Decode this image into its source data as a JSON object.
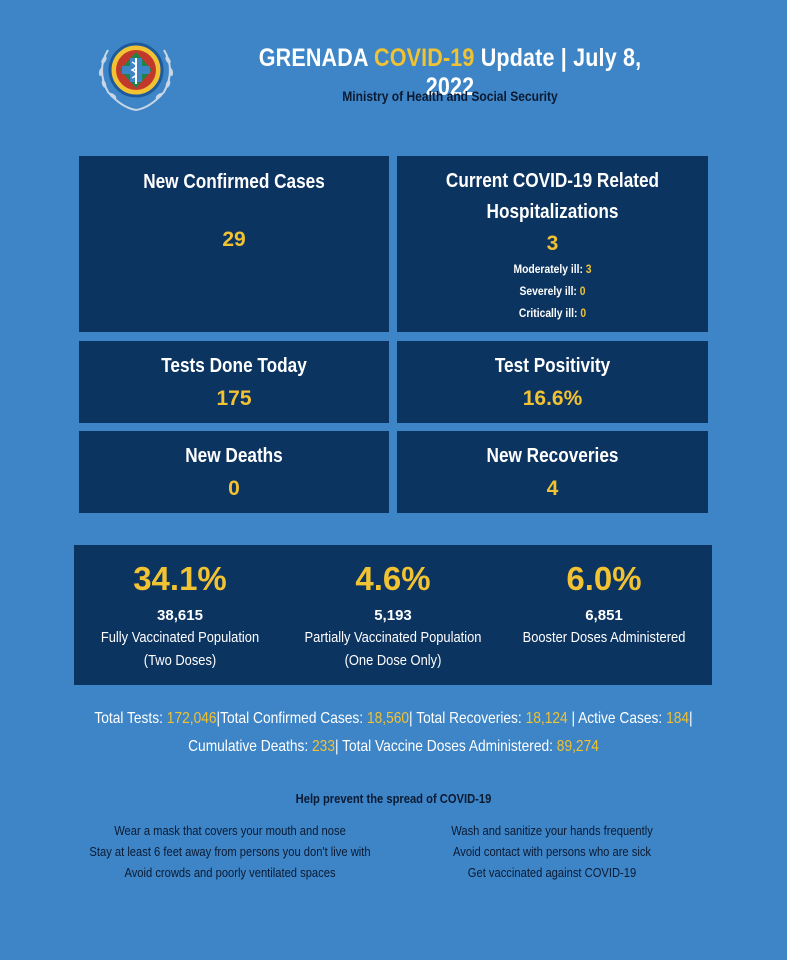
{
  "header": {
    "title_prefix": "GRENADA",
    "title_highlight": "COVID-19",
    "title_suffix": "Update | July 8, 2022",
    "subtitle": "Ministry of Health and Social Security",
    "logo_icon": "ministry-seal-icon"
  },
  "stats": {
    "new_confirmed": {
      "label": "New Confirmed Cases",
      "value": "29"
    },
    "hospitalizations": {
      "label_line1": "Current COVID-19 Related",
      "label_line2": "Hospitalizations",
      "value": "3",
      "moderate_label": "Moderately ill:",
      "moderate_value": "3",
      "severe_label": "Severely ill:",
      "severe_value": "0",
      "critical_label": "Critically ill:",
      "critical_value": "0"
    },
    "tests_today": {
      "label": "Tests Done Today",
      "value": "175"
    },
    "test_positivity": {
      "label": "Test Positivity",
      "value": "16.6%"
    },
    "new_deaths": {
      "label": "New Deaths",
      "value": "0"
    },
    "new_recoveries": {
      "label": "New Recoveries",
      "value": "4"
    }
  },
  "vaccination": {
    "fully": {
      "percent": "34.1%",
      "count": "38,615",
      "label_line1": "Fully Vaccinated Population",
      "label_line2": "(Two Doses)"
    },
    "partial": {
      "percent": "4.6%",
      "count": "5,193",
      "label_line1": "Partially Vaccinated Population",
      "label_line2": "(One Dose Only)"
    },
    "booster": {
      "percent": "6.0%",
      "count": "6,851",
      "label_line1": "Booster Doses Administered"
    }
  },
  "totals": {
    "tests_label": "Total Tests:",
    "tests_value": "172,046",
    "confirmed_label": "|Total Confirmed Cases:",
    "confirmed_value": "18,560",
    "recoveries_label": "| Total Recoveries:",
    "recoveries_value": "18,124",
    "active_label": "| Active Cases:",
    "active_value": "184",
    "active_end": "|",
    "deaths_label": "Cumulative Deaths:",
    "deaths_value": "233",
    "doses_label": "| Total Vaccine Doses Administered:",
    "doses_value": "89,274"
  },
  "prevention": {
    "title": "Help prevent the spread of COVID-19",
    "left_tips": [
      "Wear a mask that covers your mouth and nose",
      "Stay at least 6 feet away from persons you don't live with",
      "Avoid crowds and poorly ventilated spaces"
    ],
    "right_tips": [
      "Wash and sanitize your hands frequently",
      "Avoid contact with persons who are sick",
      "Get vaccinated against COVID-19"
    ]
  },
  "colors": {
    "background": "#3d85c6",
    "panel": "#0c3461",
    "accent": "#f1c232",
    "dark_text": "#0b1a33"
  }
}
